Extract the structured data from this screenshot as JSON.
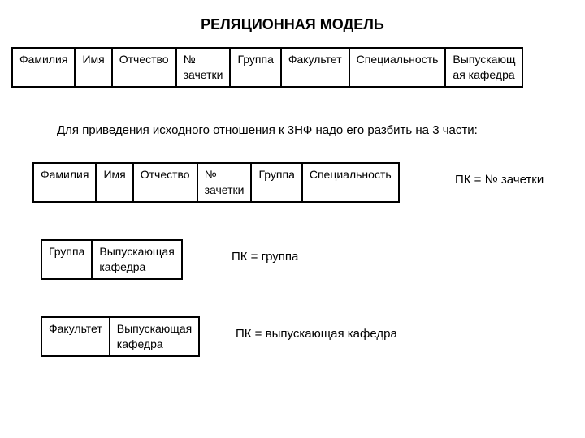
{
  "title": "РЕЛЯЦИОННАЯ МОДЕЛЬ",
  "description": "Для приведения исходного отношения к 3НФ надо его разбить на 3 части:",
  "main_table": {
    "cells": [
      "Фамилия",
      "Имя",
      "Отчество",
      "№\nзачетки",
      "Группа",
      "Факультет",
      "Специальность",
      "Выпускающ\nая кафедра"
    ]
  },
  "table1": {
    "cells": [
      "Фамилия",
      "Имя",
      "Отчество",
      "№\nзачетки",
      "Группа",
      "Специальность"
    ],
    "pk": "ПК = № зачетки"
  },
  "table2": {
    "cells": [
      "Группа",
      "Выпускающая\nкафедра"
    ],
    "pk": "ПК = группа"
  },
  "table3": {
    "cells": [
      "Факультет",
      "Выпускающая\nкафедра"
    ],
    "pk": "ПК = выпускающая кафедра"
  },
  "colors": {
    "background": "#ffffff",
    "text": "#000000",
    "border": "#000000"
  },
  "layout": {
    "title_fontsize": 18,
    "cell_fontsize": 14,
    "caption_fontsize": 15
  }
}
